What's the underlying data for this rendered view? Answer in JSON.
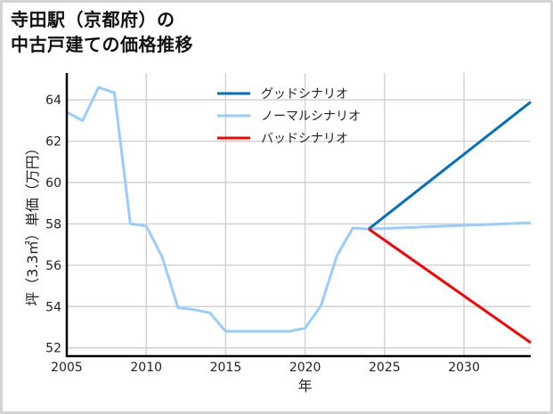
{
  "title_line1": "寺田駅（京都府）の",
  "title_line2": "中古戸建ての価格推移",
  "chart_data": {
    "type": "line",
    "title": "寺田駅（京都府）の中古戸建ての価格推移",
    "xlabel": "年",
    "ylabel": "坪（3.3㎡）単価（万円）",
    "xlim": [
      2005,
      2034.2
    ],
    "ylim": [
      51.6,
      65.3
    ],
    "xticks": [
      2005,
      2010,
      2015,
      2020,
      2025,
      2030
    ],
    "yticks": [
      52,
      54,
      56,
      58,
      60,
      62,
      64
    ],
    "grid": true,
    "legend_position": "upper center",
    "series": [
      {
        "name": "グッドシナリオ",
        "color": "#0070c0",
        "x": [
          2024,
          2034.2
        ],
        "y": [
          57.75,
          63.9
        ]
      },
      {
        "name": "ノーマルシナリオ",
        "color": "#99ccff",
        "x": [
          2005,
          2006,
          2007,
          2008,
          2009,
          2010,
          2011,
          2012,
          2013,
          2014,
          2015,
          2016,
          2017,
          2018,
          2019,
          2020,
          2021,
          2022,
          2023,
          2024,
          2034.2
        ],
        "y": [
          63.4,
          63.0,
          64.6,
          64.35,
          58.0,
          57.9,
          56.4,
          53.95,
          53.85,
          53.7,
          52.8,
          52.8,
          52.8,
          52.8,
          52.8,
          52.95,
          54.05,
          56.45,
          57.8,
          57.75,
          58.05
        ]
      },
      {
        "name": "バッドシナリオ",
        "color": "#ff0000",
        "x": [
          2024,
          2034.2
        ],
        "y": [
          57.75,
          52.25
        ]
      }
    ]
  }
}
